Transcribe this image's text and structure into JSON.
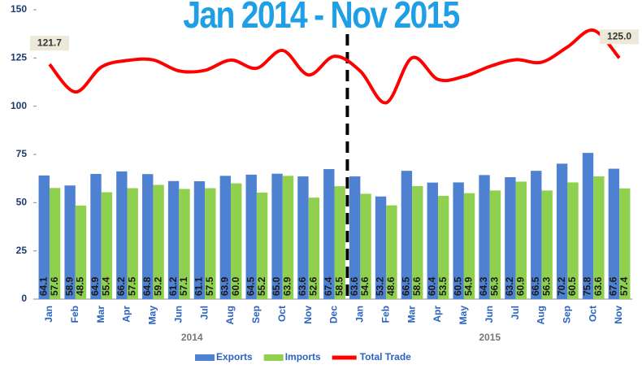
{
  "chart_data": {
    "type": "bar",
    "title": "Jan 2014 - Nov 2015",
    "categories": [
      "Jan",
      "Feb",
      "Mar",
      "Apr",
      "May",
      "Jun",
      "Jul",
      "Aug",
      "Sep",
      "Oct",
      "Nov",
      "Dec",
      "Jan",
      "Feb",
      "Mar",
      "Apr",
      "May",
      "Jun",
      "Jul",
      "Aug",
      "Sep",
      "Oct",
      "Nov"
    ],
    "groups": [
      "2014",
      "2015"
    ],
    "series": [
      {
        "name": "Exports",
        "color": "#4f81d3",
        "type": "bar",
        "values": [
          64.1,
          58.9,
          64.9,
          66.2,
          64.8,
          61.2,
          61.1,
          63.9,
          64.5,
          65.0,
          63.6,
          67.4,
          63.6,
          53.2,
          66.5,
          60.4,
          60.5,
          64.3,
          63.2,
          66.5,
          70.2,
          75.8,
          67.6
        ],
        "value_labels": [
          "64.1",
          "58.9",
          "64.9",
          "66.2",
          "64.8",
          "61.2",
          "61.1",
          "63.9",
          "64.5",
          "65.0",
          "63.6",
          "67.4",
          "63.6",
          "53.2",
          "66.5",
          "60.4",
          "60.5",
          "64.3",
          "63.2",
          "66.5",
          "70.2",
          "75.8",
          "67.6"
        ]
      },
      {
        "name": "Imports",
        "color": "#8fd14f",
        "type": "bar",
        "values": [
          57.6,
          48.5,
          55.4,
          57.5,
          59.2,
          57.1,
          57.5,
          60.0,
          55.2,
          63.9,
          52.6,
          58.5,
          54.6,
          48.6,
          58.6,
          53.5,
          54.9,
          56.3,
          60.9,
          56.3,
          60.5,
          63.6,
          57.4
        ],
        "value_labels": [
          "57.6",
          "48.5",
          "55.4",
          "57.5",
          "59.2",
          "57.1",
          "57.5",
          "60.0",
          "55.2",
          "63.9",
          "52.6",
          "58.5",
          "54.6",
          "48.6",
          "58.6",
          "53.5",
          "54.9",
          "56.3",
          "60.9",
          "56.3",
          "60.5",
          "63.6",
          "57.4"
        ]
      },
      {
        "name": "Total Trade",
        "color": "#ff0000",
        "type": "line",
        "values": [
          121.7,
          107.4,
          120.3,
          123.7,
          124.0,
          118.3,
          118.6,
          123.9,
          119.7,
          128.9,
          116.2,
          125.9,
          118.2,
          101.8,
          125.1,
          113.9,
          115.4,
          120.6,
          124.1,
          122.8,
          130.7,
          139.4,
          125.0
        ],
        "value_labels": [
          "121.7",
          null,
          null,
          null,
          null,
          null,
          null,
          null,
          null,
          null,
          null,
          null,
          null,
          null,
          null,
          null,
          null,
          null,
          null,
          null,
          null,
          null,
          "125.0"
        ]
      }
    ],
    "ylim": [
      0,
      150
    ],
    "yticks": [
      0,
      25,
      50,
      75,
      100,
      125,
      150
    ],
    "grid": false,
    "legend": "bottom"
  }
}
